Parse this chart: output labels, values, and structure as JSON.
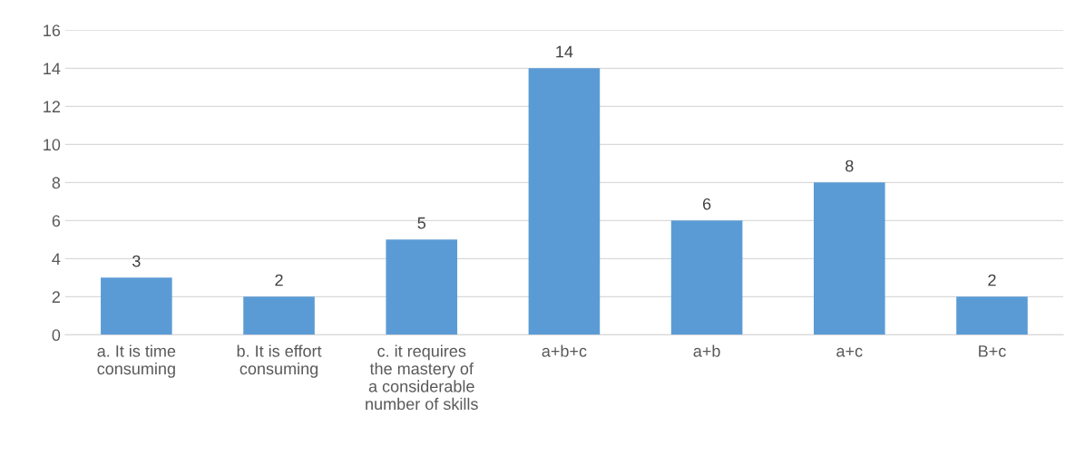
{
  "chart_data": {
    "type": "bar",
    "categories": [
      "a. It is time\nconsuming",
      "b. It is effort\nconsuming",
      "c. it requires\nthe mastery of\na considerable\nnumber of skills",
      "a+b+c",
      "a+b",
      "a+c",
      "B+c"
    ],
    "values": [
      3,
      2,
      5,
      14,
      6,
      8,
      2
    ],
    "color": "#5b9bd5",
    "ylim": [
      0,
      16
    ],
    "yticks": [
      0,
      2,
      4,
      6,
      8,
      10,
      12,
      14,
      16
    ],
    "grid": "y",
    "data_labels": true
  }
}
